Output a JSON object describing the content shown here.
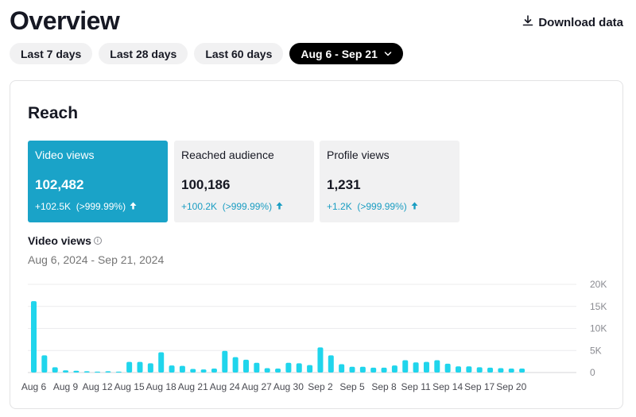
{
  "header": {
    "title": "Overview",
    "download_label": "Download data"
  },
  "filters": [
    {
      "label": "Last 7 days",
      "active": false
    },
    {
      "label": "Last 28 days",
      "active": false
    },
    {
      "label": "Last 60 days",
      "active": false
    },
    {
      "label": "Aug 6 - Sep 21",
      "active": true
    }
  ],
  "reach": {
    "title": "Reach",
    "metrics": [
      {
        "label": "Video views",
        "value": "102,482",
        "delta": "+102.5K  (>999.99%)",
        "active": true
      },
      {
        "label": "Reached audience",
        "value": "100,186",
        "delta": "+100.2K  (>999.99%)",
        "active": false
      },
      {
        "label": "Profile views",
        "value": "1,231",
        "delta": "+1.2K  (>999.99%)",
        "active": false
      }
    ],
    "chart_title": "Video views",
    "date_range": "Aug 6, 2024 - Sep 21, 2024"
  },
  "colors": {
    "accent": "#1aa3c8",
    "bar": "#20d5ec",
    "active_pill": "#000000",
    "pill": "#f1f1f2"
  },
  "chart_data": {
    "type": "bar",
    "title": "",
    "xlabel": "",
    "ylabel": "",
    "ylim": [
      0,
      20000
    ],
    "yticks": [
      "0",
      "5K",
      "10K",
      "15K",
      "20K"
    ],
    "yticks_values": [
      0,
      5000,
      10000,
      15000,
      20000
    ],
    "xtick_labels": [
      "Aug 6",
      "Aug 9",
      "Aug 12",
      "Aug 15",
      "Aug 18",
      "Aug 21",
      "Aug 24",
      "Aug 27",
      "Aug 30",
      "Sep 2",
      "Sep 5",
      "Sep 8",
      "Sep 11",
      "Sep 14",
      "Sep 17",
      "Sep 20"
    ],
    "xtick_every": 3,
    "categories": [
      "Aug 6",
      "Aug 7",
      "Aug 8",
      "Aug 9",
      "Aug 10",
      "Aug 11",
      "Aug 12",
      "Aug 13",
      "Aug 14",
      "Aug 15",
      "Aug 16",
      "Aug 17",
      "Aug 18",
      "Aug 19",
      "Aug 20",
      "Aug 21",
      "Aug 22",
      "Aug 23",
      "Aug 24",
      "Aug 25",
      "Aug 26",
      "Aug 27",
      "Aug 28",
      "Aug 29",
      "Aug 30",
      "Aug 31",
      "Sep 1",
      "Sep 2",
      "Sep 3",
      "Sep 4",
      "Sep 5",
      "Sep 6",
      "Sep 7",
      "Sep 8",
      "Sep 9",
      "Sep 10",
      "Sep 11",
      "Sep 12",
      "Sep 13",
      "Sep 14",
      "Sep 15",
      "Sep 16",
      "Sep 17",
      "Sep 18",
      "Sep 19",
      "Sep 20",
      "Sep 21"
    ],
    "values": [
      16200,
      3900,
      1200,
      500,
      400,
      300,
      200,
      300,
      200,
      2400,
      2400,
      2100,
      4600,
      1600,
      1500,
      800,
      700,
      900,
      4900,
      3500,
      2900,
      2200,
      1000,
      900,
      2200,
      2100,
      1700,
      5700,
      3900,
      1900,
      1300,
      1300,
      1100,
      1100,
      1600,
      2800,
      2300,
      2400,
      2800,
      2000,
      1400,
      1400,
      1200,
      1100,
      1000,
      900,
      900
    ]
  }
}
